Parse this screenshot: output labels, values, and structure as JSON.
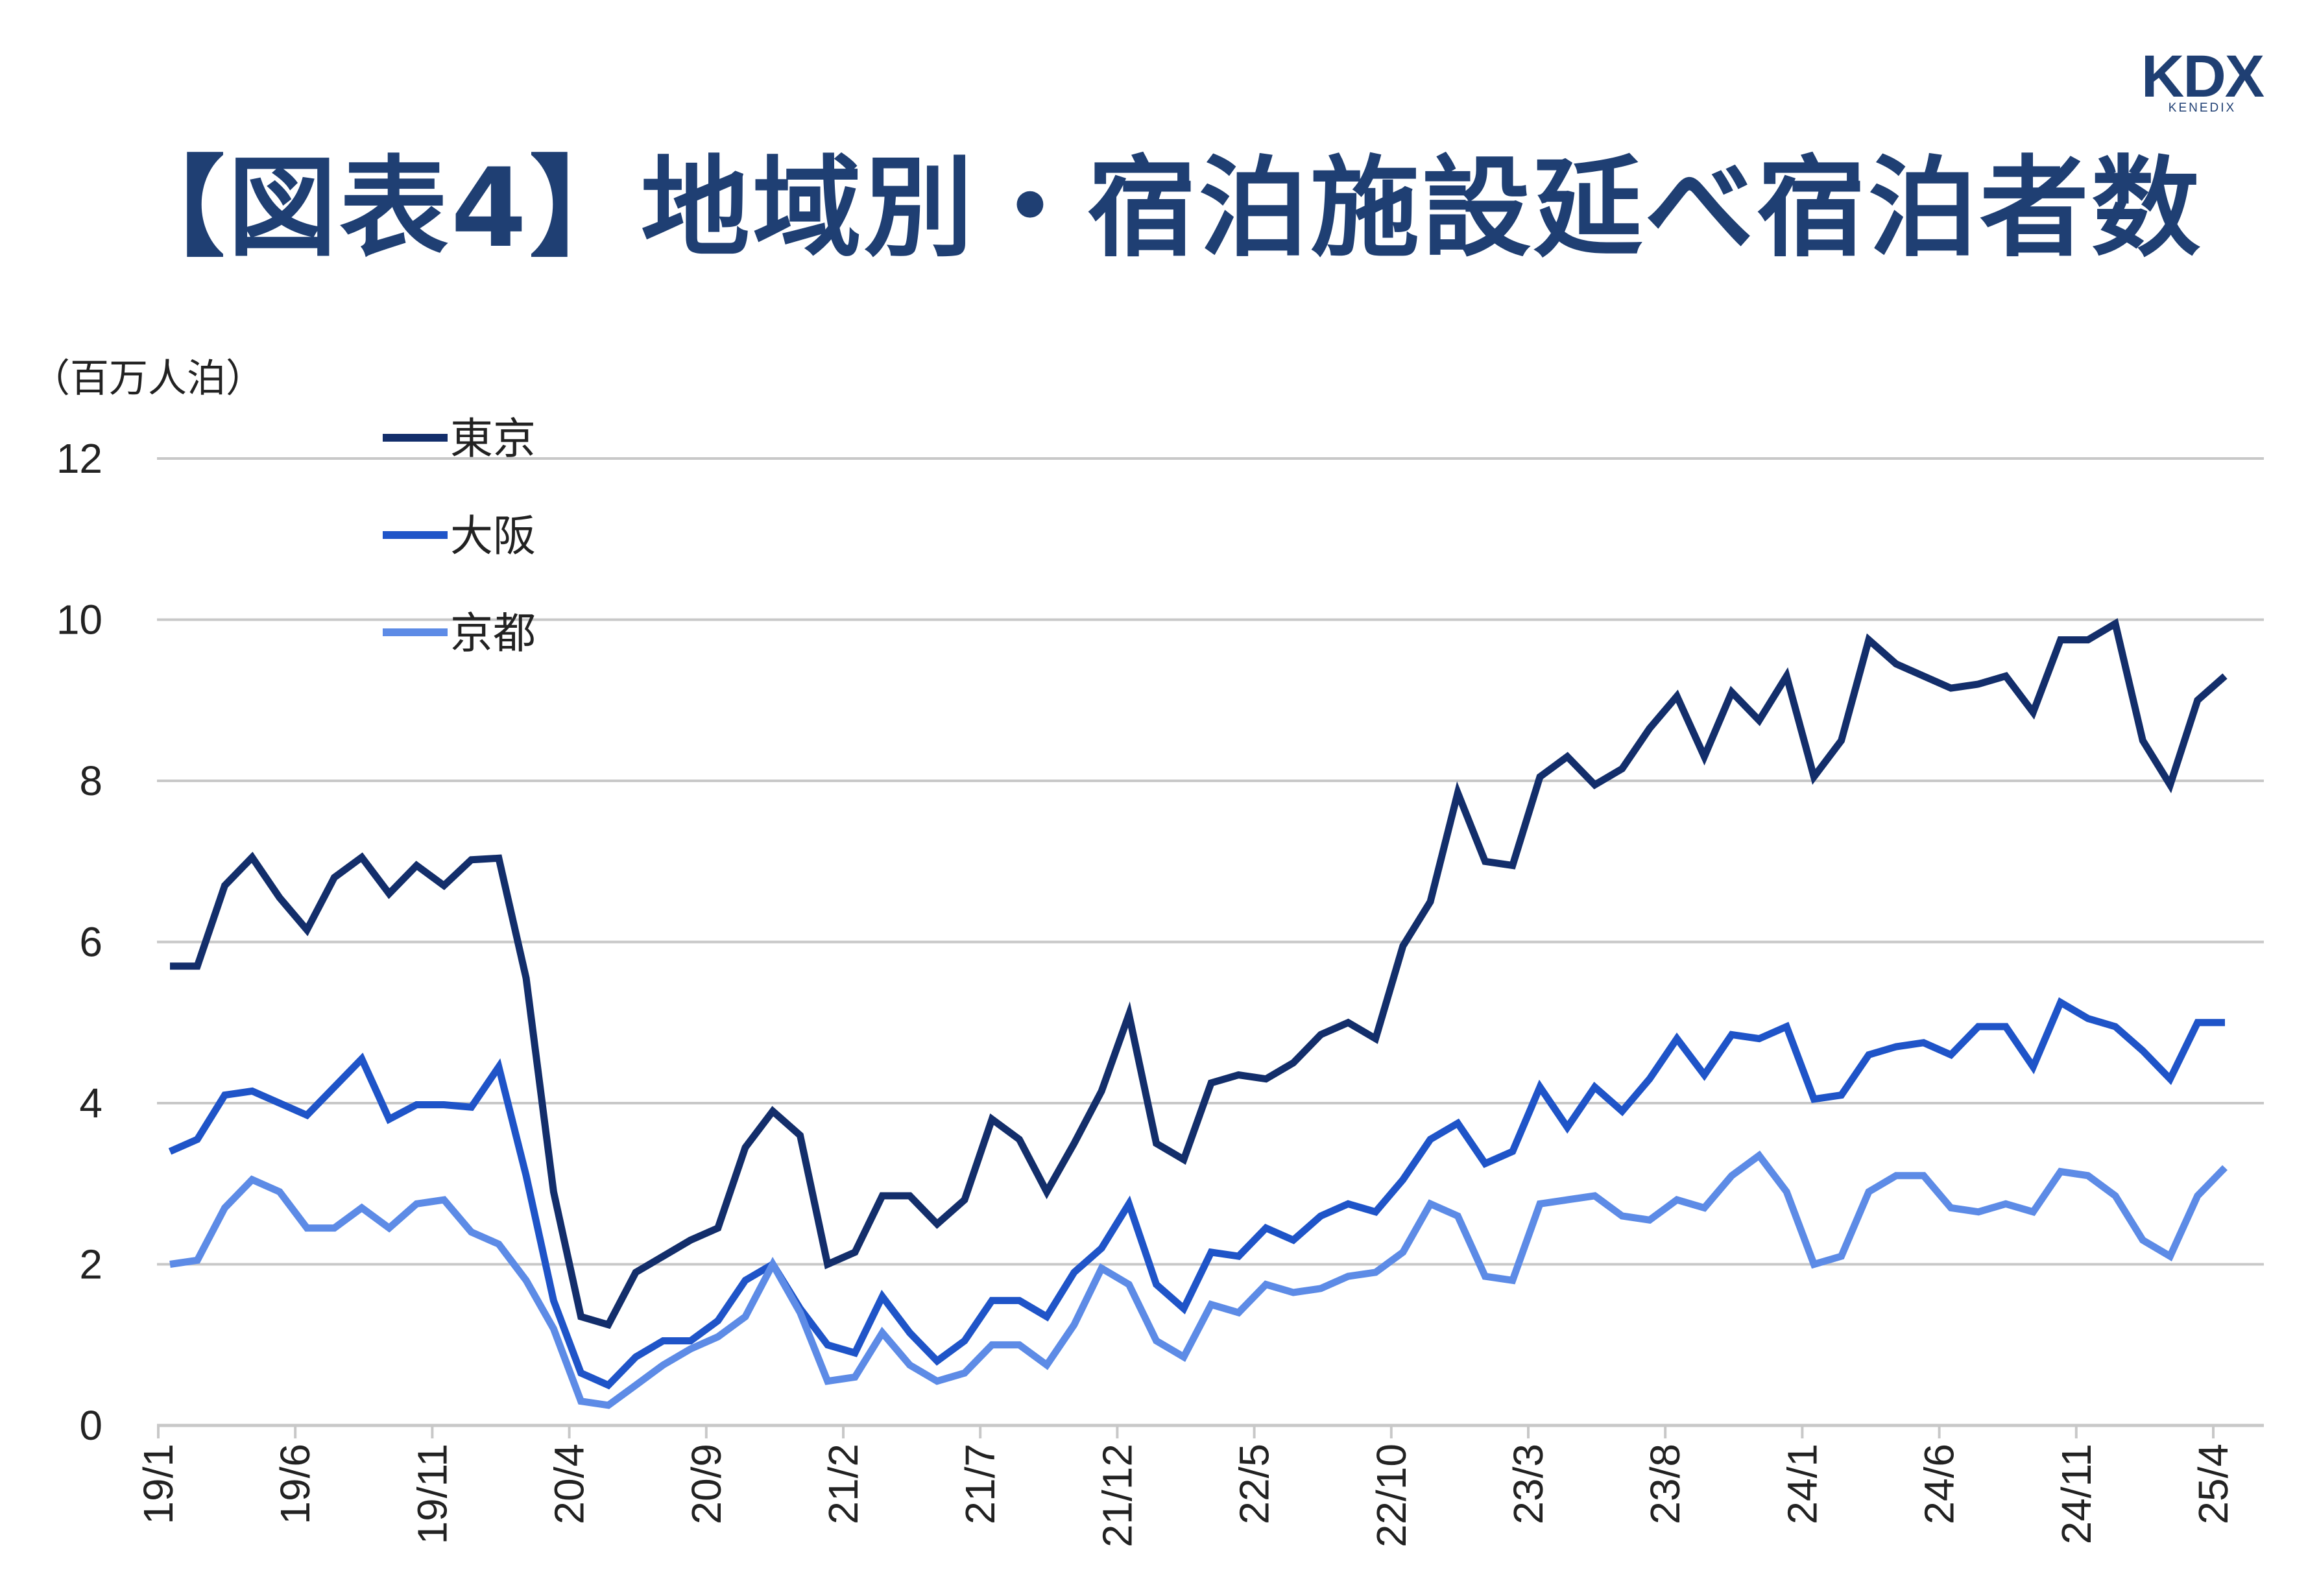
{
  "title": "【図表4】地域別・宿泊施設延べ宿泊者数",
  "logo": {
    "main": "KDX",
    "sub": "KENEDIX"
  },
  "colors": {
    "title": "#1f3f73",
    "tokyo": "#132e6b",
    "osaka": "#1f54c8",
    "kyoto": "#5d8be6",
    "grid": "#c8c8c8"
  },
  "chart_data": {
    "type": "line",
    "unit_label": "（百万人泊）",
    "ylim": [
      0,
      12
    ],
    "yticks": [
      0,
      2,
      4,
      6,
      8,
      10,
      12
    ],
    "grid": true,
    "legend_position": "top-left",
    "x": [
      "19/1",
      "19/2",
      "19/3",
      "19/4",
      "19/5",
      "19/6",
      "19/7",
      "19/8",
      "19/9",
      "19/10",
      "19/11",
      "19/12",
      "20/1",
      "20/2",
      "20/3",
      "20/4",
      "20/5",
      "20/6",
      "20/7",
      "20/8",
      "20/9",
      "20/10",
      "20/11",
      "20/12",
      "21/1",
      "21/2",
      "21/3",
      "21/4",
      "21/5",
      "21/6",
      "21/7",
      "21/8",
      "21/9",
      "21/10",
      "21/11",
      "21/12",
      "22/1",
      "22/2",
      "22/3",
      "22/4",
      "22/5",
      "22/6",
      "22/7",
      "22/8",
      "22/9",
      "22/10",
      "22/11",
      "22/12",
      "23/1",
      "23/2",
      "23/3",
      "23/4",
      "23/5",
      "23/6",
      "23/7",
      "23/8",
      "23/9",
      "23/10",
      "23/11",
      "23/12",
      "24/1",
      "24/2",
      "24/3",
      "24/4",
      "24/5",
      "24/6",
      "24/7",
      "24/8",
      "24/9",
      "24/10",
      "24/11",
      "24/12",
      "25/1",
      "25/2",
      "25/3",
      "25/4"
    ],
    "xtick_labels": [
      "19/1",
      "19/6",
      "19/11",
      "20/4",
      "20/9",
      "21/2",
      "21/7",
      "21/12",
      "22/5",
      "22/10",
      "23/3",
      "23/8",
      "24/1",
      "24/6",
      "24/11",
      "25/4"
    ],
    "series": [
      {
        "name": "東京",
        "values": [
          5.7,
          5.7,
          6.7,
          7.05,
          6.55,
          6.15,
          6.8,
          7.05,
          6.6,
          6.95,
          6.7,
          7.02,
          7.04,
          5.55,
          2.9,
          1.35,
          1.25,
          1.9,
          2.1,
          2.3,
          2.45,
          3.45,
          3.9,
          3.6,
          2.0,
          2.15,
          2.85,
          2.85,
          2.5,
          2.8,
          3.8,
          3.55,
          2.9,
          3.5,
          4.15,
          5.1,
          3.5,
          3.3,
          4.25,
          4.35,
          4.3,
          4.5,
          4.85,
          5.0,
          4.8,
          5.95,
          6.5,
          7.85,
          7.0,
          6.95,
          8.05,
          8.3,
          7.95,
          8.15,
          8.65,
          9.05,
          8.3,
          9.1,
          8.75,
          9.3,
          8.05,
          8.5,
          9.75,
          9.45,
          9.3,
          9.15,
          9.2,
          9.3,
          8.85,
          9.75,
          9.75,
          9.95,
          8.5,
          7.95,
          9.0,
          9.3
        ]
      },
      {
        "name": "大阪",
        "values": [
          3.4,
          3.55,
          4.1,
          4.15,
          4.0,
          3.85,
          4.2,
          4.55,
          3.8,
          3.98,
          3.98,
          3.95,
          4.45,
          3.1,
          1.55,
          0.65,
          0.5,
          0.85,
          1.05,
          1.05,
          1.3,
          1.8,
          2.0,
          1.45,
          1.0,
          0.9,
          1.6,
          1.15,
          0.8,
          1.05,
          1.55,
          1.55,
          1.35,
          1.9,
          2.2,
          2.75,
          1.75,
          1.45,
          2.15,
          2.1,
          2.45,
          2.3,
          2.6,
          2.75,
          2.65,
          3.05,
          3.55,
          3.75,
          3.25,
          3.4,
          4.2,
          3.7,
          4.2,
          3.9,
          4.3,
          4.8,
          4.35,
          4.85,
          4.8,
          4.95,
          4.05,
          4.1,
          4.6,
          4.7,
          4.75,
          4.6,
          4.95,
          4.95,
          4.45,
          5.25,
          5.05,
          4.95,
          4.65,
          4.3,
          5.0,
          5.0
        ]
      },
      {
        "name": "京都",
        "values": [
          2.0,
          2.05,
          2.7,
          3.05,
          2.9,
          2.45,
          2.45,
          2.7,
          2.45,
          2.75,
          2.8,
          2.4,
          2.25,
          1.8,
          1.2,
          0.3,
          0.25,
          0.5,
          0.75,
          0.95,
          1.1,
          1.35,
          2.0,
          1.4,
          0.55,
          0.6,
          1.15,
          0.75,
          0.55,
          0.65,
          1.0,
          1.0,
          0.75,
          1.25,
          1.95,
          1.75,
          1.05,
          0.85,
          1.5,
          1.4,
          1.75,
          1.65,
          1.7,
          1.85,
          1.9,
          2.15,
          2.75,
          2.6,
          1.85,
          1.8,
          2.75,
          2.8,
          2.85,
          2.6,
          2.55,
          2.8,
          2.7,
          3.1,
          3.35,
          2.9,
          2.0,
          2.1,
          2.9,
          3.1,
          3.1,
          2.7,
          2.65,
          2.75,
          2.65,
          3.15,
          3.1,
          2.85,
          2.3,
          2.1,
          2.85,
          3.2
        ]
      }
    ]
  }
}
